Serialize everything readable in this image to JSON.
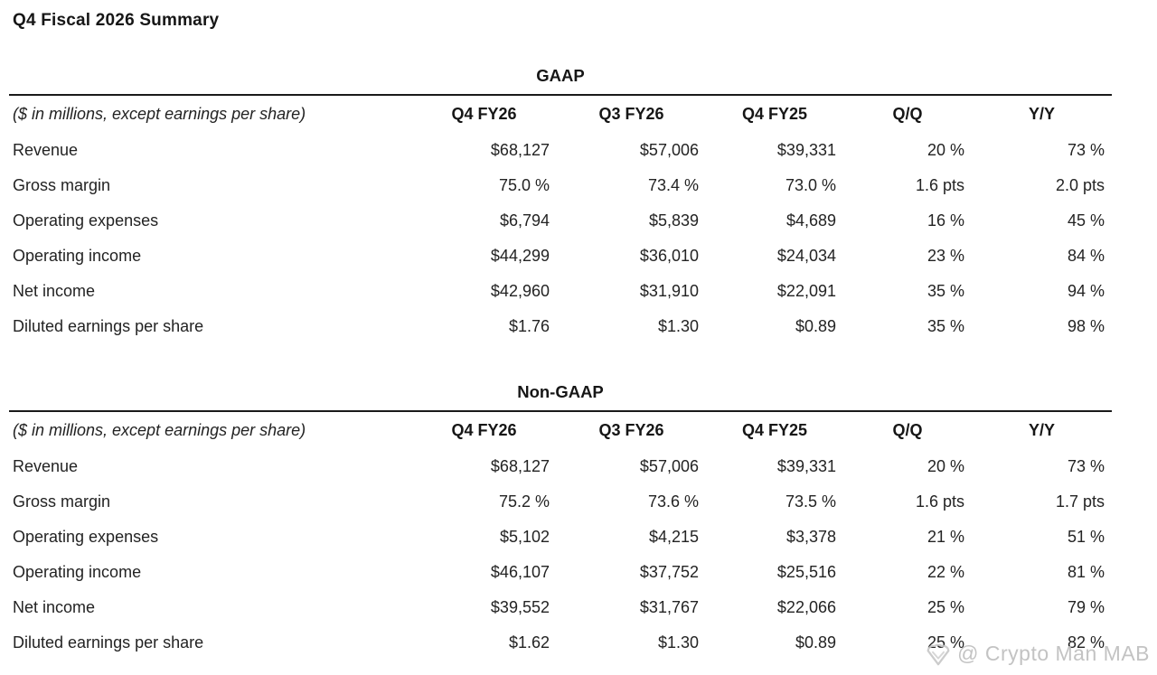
{
  "page": {
    "title": "Q4 Fiscal 2026 Summary"
  },
  "tables": [
    {
      "section_title": "GAAP",
      "unit_note": "($ in millions, except earnings per share)",
      "columns": [
        "Q4 FY26",
        "Q3 FY26",
        "Q4 FY25",
        "Q/Q",
        "Y/Y"
      ],
      "rows": [
        {
          "label": "Revenue",
          "values": [
            "$68,127",
            "$57,006",
            "$39,331",
            "20 %",
            "73 %"
          ]
        },
        {
          "label": "Gross margin",
          "values": [
            "75.0 %",
            "73.4 %",
            "73.0 %",
            "1.6 pts",
            "2.0 pts"
          ]
        },
        {
          "label": "Operating expenses",
          "values": [
            "$6,794",
            "$5,839",
            "$4,689",
            "16 %",
            "45 %"
          ]
        },
        {
          "label": "Operating income",
          "values": [
            "$44,299",
            "$36,010",
            "$24,034",
            "23 %",
            "84 %"
          ]
        },
        {
          "label": "Net income",
          "values": [
            "$42,960",
            "$31,910",
            "$22,091",
            "35 %",
            "94 %"
          ]
        },
        {
          "label": "Diluted earnings per share",
          "values": [
            "$1.76",
            "$1.30",
            "$0.89",
            "35 %",
            "98 %"
          ]
        }
      ]
    },
    {
      "section_title": "Non-GAAP",
      "unit_note": "($ in millions, except earnings per share)",
      "columns": [
        "Q4 FY26",
        "Q3 FY26",
        "Q4 FY25",
        "Q/Q",
        "Y/Y"
      ],
      "rows": [
        {
          "label": "Revenue",
          "values": [
            "$68,127",
            "$57,006",
            "$39,331",
            "20 %",
            "73 %"
          ]
        },
        {
          "label": "Gross margin",
          "values": [
            "75.2 %",
            "73.6 %",
            "73.5 %",
            "1.6 pts",
            "1.7 pts"
          ]
        },
        {
          "label": "Operating expenses",
          "values": [
            "$5,102",
            "$4,215",
            "$3,378",
            "21 %",
            "51 %"
          ]
        },
        {
          "label": "Operating income",
          "values": [
            "$46,107",
            "$37,752",
            "$25,516",
            "22 %",
            "81 %"
          ]
        },
        {
          "label": "Net income",
          "values": [
            "$39,552",
            "$31,767",
            "$22,066",
            "25 %",
            "79 %"
          ]
        },
        {
          "label": "Diluted earnings per share",
          "values": [
            "$1.62",
            "$1.30",
            "$0.89",
            "25 %",
            "82 %"
          ]
        }
      ]
    }
  ],
  "watermark": {
    "text": "@ Crypto Man MAB",
    "icon": "gem-logo-icon",
    "color": "#bdbdbd"
  }
}
